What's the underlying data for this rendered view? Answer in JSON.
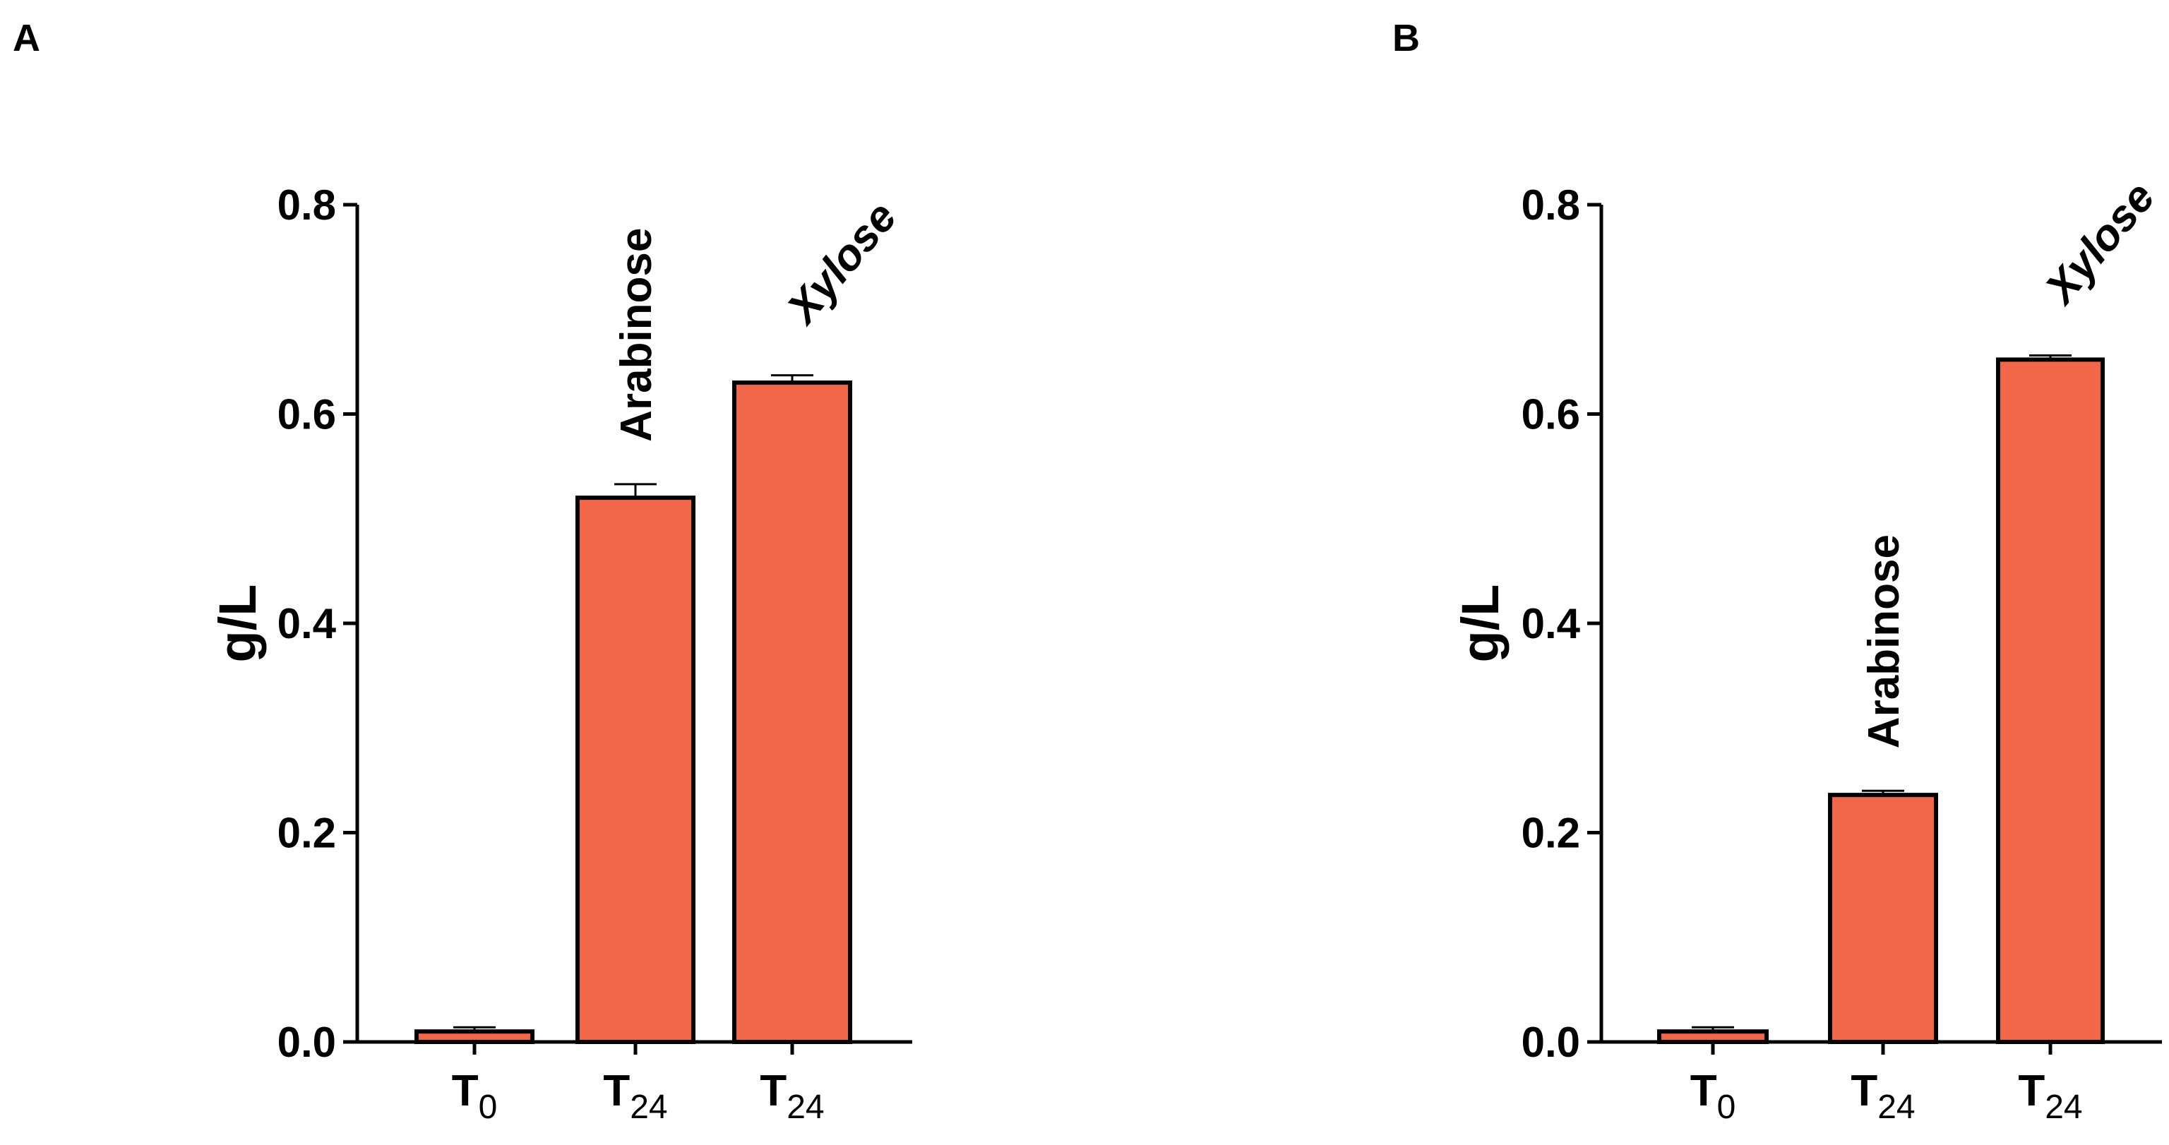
{
  "figure": {
    "bar_color": "#F26749",
    "stroke_color": "#000000"
  },
  "chart_data": [
    {
      "panel_label": "A",
      "type": "bar",
      "ylabel": "g/L",
      "xlabel": "",
      "ylim": [
        0,
        0.8
      ],
      "yticks": [
        "0.0",
        "0.2",
        "0.4",
        "0.6",
        "0.8"
      ],
      "grid": false,
      "categories": [
        {
          "main": "T",
          "sub": "0"
        },
        {
          "main": "T",
          "sub": "24"
        },
        {
          "main": "T",
          "sub": "24"
        }
      ],
      "values": [
        0.01,
        0.52,
        0.63
      ],
      "errors": [
        0.004,
        0.013,
        0.007
      ],
      "annotations": [
        "",
        "Arabinose",
        "Xylose"
      ]
    },
    {
      "panel_label": "B",
      "type": "bar",
      "ylabel": "g/L",
      "xlabel": "",
      "ylim": [
        0,
        0.8
      ],
      "yticks": [
        "0.0",
        "0.2",
        "0.4",
        "0.6",
        "0.8"
      ],
      "grid": false,
      "categories": [
        {
          "main": "T",
          "sub": "0"
        },
        {
          "main": "T",
          "sub": "24"
        },
        {
          "main": "T",
          "sub": "24"
        }
      ],
      "values": [
        0.01,
        0.236,
        0.652
      ],
      "errors": [
        0.004,
        0.004,
        0.004
      ],
      "annotations": [
        "",
        "Arabinose",
        "Xylose"
      ]
    }
  ]
}
